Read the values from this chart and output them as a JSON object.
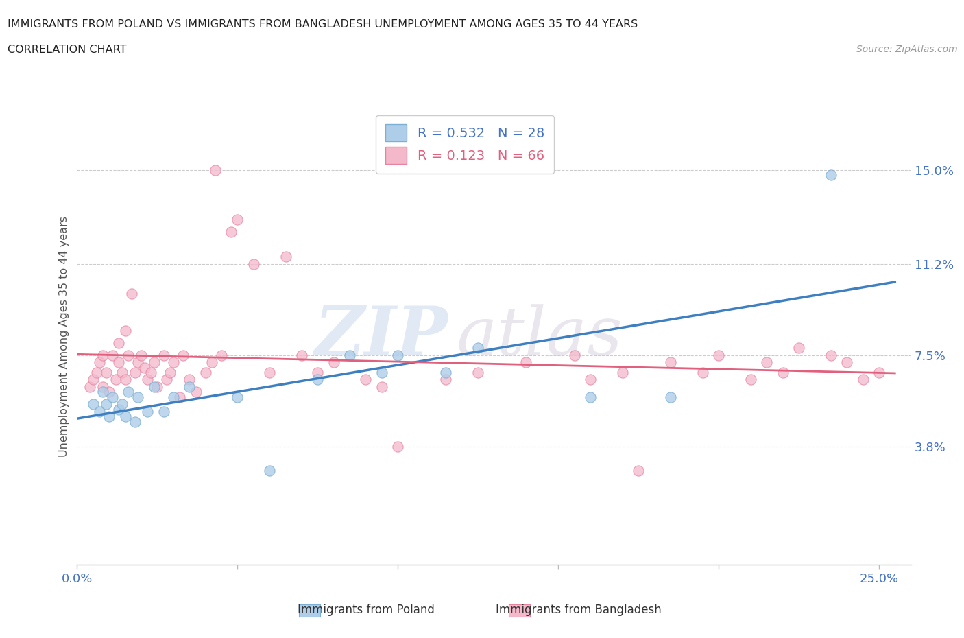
{
  "title_line1": "IMMIGRANTS FROM POLAND VS IMMIGRANTS FROM BANGLADESH UNEMPLOYMENT AMONG AGES 35 TO 44 YEARS",
  "title_line2": "CORRELATION CHART",
  "source_text": "Source: ZipAtlas.com",
  "ylabel": "Unemployment Among Ages 35 to 44 years",
  "xlim": [
    0.0,
    0.26
  ],
  "ylim": [
    -0.01,
    0.175
  ],
  "ytick_vals": [
    0.038,
    0.075,
    0.112,
    0.15
  ],
  "ytick_labels": [
    "3.8%",
    "7.5%",
    "11.2%",
    "15.0%"
  ],
  "xtick_vals": [
    0.0,
    0.05,
    0.1,
    0.15,
    0.2,
    0.25
  ],
  "xtick_labels": [
    "0.0%",
    "",
    "",
    "",
    "",
    "25.0%"
  ],
  "watermark_zip": "ZIP",
  "watermark_atlas": "atlas",
  "R_poland": 0.532,
  "N_poland": 28,
  "R_bangladesh": 0.123,
  "N_bangladesh": 66,
  "color_poland_fill": "#aecde8",
  "color_poland_edge": "#7bafd4",
  "color_bangladesh_fill": "#f4b8cb",
  "color_bangladesh_edge": "#e8829e",
  "color_poland_line": "#3d7fc1",
  "color_bangladesh_line": "#e0607e",
  "poland_x": [
    0.005,
    0.007,
    0.008,
    0.009,
    0.01,
    0.011,
    0.013,
    0.014,
    0.015,
    0.016,
    0.018,
    0.019,
    0.022,
    0.024,
    0.027,
    0.03,
    0.035,
    0.05,
    0.06,
    0.075,
    0.085,
    0.095,
    0.1,
    0.115,
    0.125,
    0.16,
    0.185,
    0.235
  ],
  "poland_y": [
    0.055,
    0.052,
    0.06,
    0.055,
    0.05,
    0.058,
    0.053,
    0.055,
    0.05,
    0.06,
    0.048,
    0.058,
    0.052,
    0.062,
    0.052,
    0.058,
    0.062,
    0.058,
    0.028,
    0.065,
    0.075,
    0.068,
    0.075,
    0.068,
    0.078,
    0.058,
    0.058,
    0.148
  ],
  "bangladesh_x": [
    0.004,
    0.005,
    0.006,
    0.007,
    0.008,
    0.008,
    0.009,
    0.01,
    0.011,
    0.012,
    0.013,
    0.013,
    0.014,
    0.015,
    0.015,
    0.016,
    0.017,
    0.018,
    0.019,
    0.02,
    0.021,
    0.022,
    0.023,
    0.024,
    0.025,
    0.027,
    0.028,
    0.029,
    0.03,
    0.032,
    0.033,
    0.035,
    0.037,
    0.04,
    0.042,
    0.043,
    0.045,
    0.048,
    0.05,
    0.055,
    0.06,
    0.065,
    0.07,
    0.075,
    0.08,
    0.09,
    0.095,
    0.1,
    0.115,
    0.125,
    0.14,
    0.155,
    0.16,
    0.17,
    0.175,
    0.185,
    0.195,
    0.2,
    0.21,
    0.215,
    0.22,
    0.225,
    0.235,
    0.24,
    0.245,
    0.25
  ],
  "bangladesh_y": [
    0.062,
    0.065,
    0.068,
    0.072,
    0.075,
    0.062,
    0.068,
    0.06,
    0.075,
    0.065,
    0.072,
    0.08,
    0.068,
    0.065,
    0.085,
    0.075,
    0.1,
    0.068,
    0.072,
    0.075,
    0.07,
    0.065,
    0.068,
    0.072,
    0.062,
    0.075,
    0.065,
    0.068,
    0.072,
    0.058,
    0.075,
    0.065,
    0.06,
    0.068,
    0.072,
    0.15,
    0.075,
    0.125,
    0.13,
    0.112,
    0.068,
    0.115,
    0.075,
    0.068,
    0.072,
    0.065,
    0.062,
    0.038,
    0.065,
    0.068,
    0.072,
    0.075,
    0.065,
    0.068,
    0.028,
    0.072,
    0.068,
    0.075,
    0.065,
    0.072,
    0.068,
    0.078,
    0.075,
    0.072,
    0.065,
    0.068
  ]
}
